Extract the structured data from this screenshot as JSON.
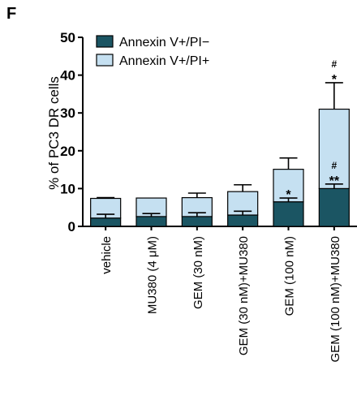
{
  "panel_label": "F",
  "chart_data": {
    "type": "bar",
    "stacked": true,
    "ylabel": "% of PC3 DR cells",
    "ylim": [
      0,
      50
    ],
    "yticks": [
      0,
      10,
      20,
      30,
      40,
      50
    ],
    "grid": false,
    "legend_position": "top-left",
    "categories": [
      "vehicle",
      "MU380 (4 μM)",
      "GEM (30 nM)",
      "GEM (30 nM)+MU380",
      "GEM (100 nM)",
      "GEM (100 nM)+MU380"
    ],
    "series": [
      {
        "name": "Annexin V+/PI−",
        "color": "#1b5563",
        "values": [
          2.2,
          2.6,
          2.6,
          3.0,
          6.5,
          10.0
        ],
        "errors": [
          1.0,
          0.8,
          1.0,
          1.0,
          1.0,
          1.2
        ],
        "annotations": [
          "",
          "",
          "",
          "",
          "*",
          "#\n**"
        ]
      },
      {
        "name": "Annexin V+/PI+",
        "color": "#c5e0f1",
        "values": [
          5.2,
          4.9,
          5.0,
          6.2,
          8.6,
          21.0
        ],
        "errors": [
          0.2,
          0.0,
          1.2,
          1.8,
          3.0,
          7.0
        ],
        "annotations": [
          "",
          "",
          "",
          "",
          "",
          "#\n*"
        ]
      }
    ]
  }
}
